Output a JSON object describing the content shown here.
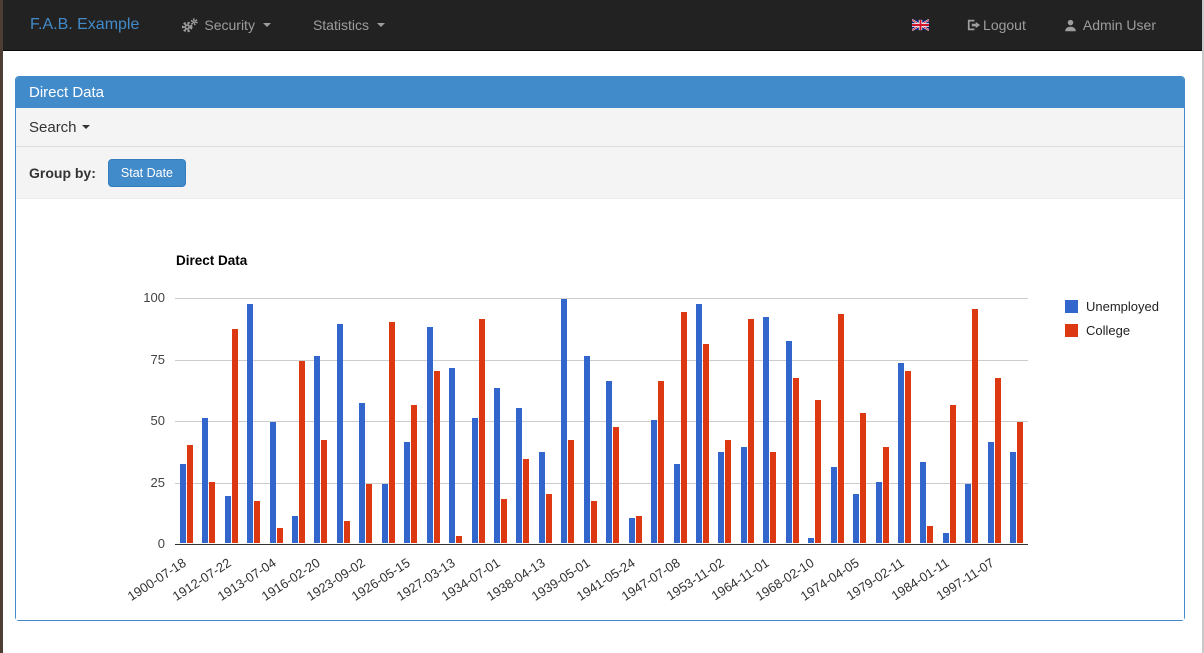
{
  "navbar": {
    "brand": "F.A.B. Example",
    "menus": [
      {
        "label": "Security",
        "icon": "cogs-icon"
      },
      {
        "label": "Statistics",
        "icon": null
      }
    ],
    "right": {
      "locale_flag": "uk-flag-icon",
      "logout_label": "Logout",
      "user_label": "Admin User"
    }
  },
  "panel": {
    "title": "Direct Data",
    "search_label": "Search",
    "group_by_label": "Group by:",
    "group_by_button": "Stat Date"
  },
  "colors": {
    "accent": "#428bca",
    "navbar_bg": "#222222",
    "bar_blue": "#3366cc",
    "bar_red": "#dc3912"
  },
  "chart_data": {
    "type": "bar",
    "title": "Direct Data",
    "xlabel": "",
    "ylabel": "",
    "ylim": [
      0,
      100
    ],
    "y_ticks": [
      0,
      25,
      50,
      75,
      100
    ],
    "grid": true,
    "legend_position": "right",
    "label_every": 2,
    "x_labels": [
      "1900-07-18",
      "1912-07-22",
      "1913-07-04",
      "1916-02-20",
      "1923-09-02",
      "1926-05-15",
      "1927-03-13",
      "1934-07-01",
      "1938-04-13",
      "1939-05-01",
      "1941-05-24",
      "1947-07-08",
      "1953-11-02",
      "1964-11-01",
      "1968-02-10",
      "1974-04-05",
      "1979-02-11",
      "1984-01-11",
      "1997-11-07"
    ],
    "series": [
      {
        "name": "Unemployed",
        "color": "#3366cc",
        "values": [
          32,
          51,
          19,
          97,
          49,
          11,
          76,
          89,
          57,
          24,
          41,
          88,
          71,
          51,
          63,
          55,
          37,
          99,
          76,
          66,
          10,
          50,
          32,
          97,
          37,
          39,
          92,
          82,
          2,
          31,
          20,
          25,
          73,
          33,
          4,
          24,
          41,
          37
        ]
      },
      {
        "name": "College",
        "color": "#dc3912",
        "values": [
          40,
          25,
          87,
          17,
          6,
          74,
          42,
          9,
          24,
          90,
          56,
          70,
          3,
          91,
          18,
          34,
          20,
          42,
          17,
          47,
          11,
          66,
          94,
          81,
          42,
          91,
          37,
          67,
          58,
          93,
          53,
          39,
          70,
          7,
          56,
          95,
          67,
          49
        ]
      }
    ]
  }
}
